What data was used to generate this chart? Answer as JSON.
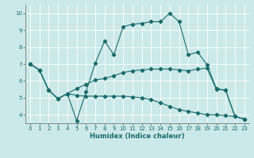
{
  "xlabel": "Humidex (Indice chaleur)",
  "xlim": [
    -0.5,
    23.5
  ],
  "ylim": [
    3.5,
    10.5
  ],
  "yticks": [
    4,
    5,
    6,
    7,
    8,
    9,
    10
  ],
  "xticks": [
    0,
    1,
    2,
    3,
    4,
    5,
    6,
    7,
    8,
    9,
    10,
    11,
    12,
    13,
    14,
    15,
    16,
    17,
    18,
    19,
    20,
    21,
    22,
    23
  ],
  "bg_color": "#cce9e9",
  "line_color": "#1a6b6b",
  "grid_color": "#ffffff",
  "line1_x": [
    0,
    1,
    2,
    3,
    4,
    5,
    6,
    7,
    8,
    9,
    10,
    11,
    12,
    13,
    14,
    15,
    16,
    17,
    18,
    19,
    20,
    21,
    22,
    23
  ],
  "line1_y": [
    7.0,
    6.65,
    5.45,
    4.95,
    5.25,
    3.65,
    5.35,
    7.05,
    8.35,
    7.55,
    9.2,
    9.35,
    9.4,
    9.5,
    9.5,
    10.0,
    9.5,
    7.55,
    7.7,
    6.95,
    5.55,
    5.45,
    3.9,
    3.75
  ],
  "line2_x": [
    0,
    1,
    2,
    3,
    4,
    5,
    6,
    7,
    8,
    9,
    10,
    11,
    12,
    13,
    14,
    15,
    16,
    17,
    18,
    19,
    20,
    21,
    22,
    23
  ],
  "line2_y": [
    7.0,
    6.65,
    5.45,
    4.95,
    5.25,
    5.55,
    5.8,
    6.05,
    6.15,
    6.3,
    6.5,
    6.6,
    6.65,
    6.7,
    6.7,
    6.7,
    6.65,
    6.6,
    6.7,
    6.75,
    5.5,
    5.45,
    3.9,
    3.75
  ],
  "line3_x": [
    0,
    1,
    2,
    3,
    4,
    5,
    6,
    7,
    8,
    9,
    10,
    11,
    12,
    13,
    14,
    15,
    16,
    17,
    18,
    19,
    20,
    21,
    22,
    23
  ],
  "line3_y": [
    7.0,
    6.65,
    5.45,
    4.95,
    5.25,
    5.15,
    5.1,
    5.1,
    5.1,
    5.1,
    5.1,
    5.05,
    5.0,
    4.9,
    4.7,
    4.5,
    4.3,
    4.2,
    4.1,
    4.0,
    4.0,
    3.95,
    3.9,
    3.75
  ],
  "tick_labelsize": 5.0,
  "xlabel_fontsize": 6.0
}
